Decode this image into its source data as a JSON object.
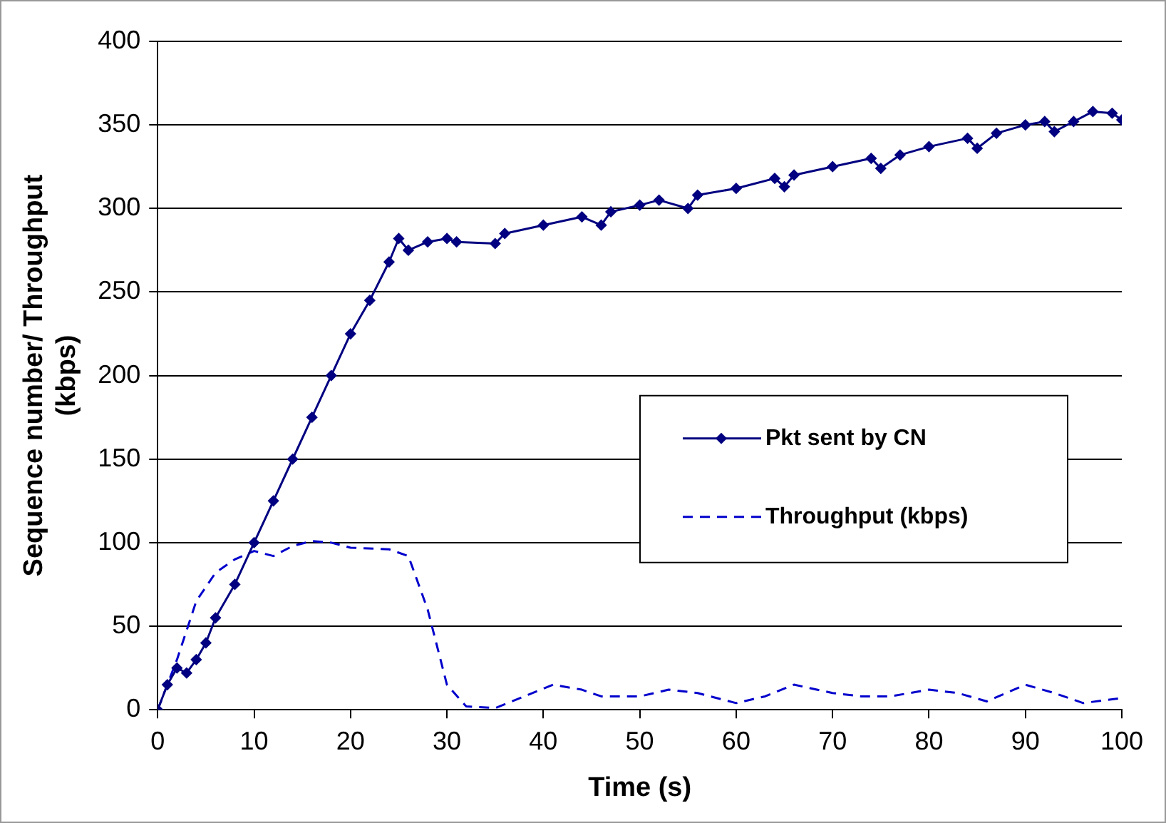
{
  "chart_data": {
    "type": "line",
    "xlabel": "Time (s)",
    "ylabel": "Sequence number/ Throughput (kbps)",
    "xlim": [
      0,
      100
    ],
    "xticks": [
      0,
      10,
      20,
      30,
      40,
      50,
      60,
      70,
      80,
      90,
      100
    ],
    "ylim": [
      0,
      400
    ],
    "yticks": [
      0,
      50,
      100,
      150,
      200,
      250,
      300,
      350,
      400
    ],
    "grid": "y",
    "legend": "right",
    "series": [
      {
        "name": "Pkt sent by CN",
        "color": "#000080",
        "marker": "diamond",
        "line_style": "solid",
        "x": [
          0,
          1,
          2,
          3,
          4,
          5,
          6,
          8,
          10,
          12,
          14,
          16,
          18,
          20,
          22,
          24,
          25,
          26,
          28,
          30,
          31,
          35,
          36,
          40,
          44,
          46,
          47,
          50,
          52,
          55,
          56,
          60,
          64,
          65,
          66,
          70,
          74,
          75,
          77,
          80,
          84,
          85,
          87,
          90,
          92,
          93,
          95,
          97,
          99,
          100
        ],
        "values": [
          0,
          15,
          25,
          22,
          30,
          40,
          55,
          75,
          100,
          125,
          150,
          175,
          200,
          225,
          245,
          268,
          282,
          275,
          280,
          282,
          280,
          279,
          285,
          290,
          295,
          290,
          298,
          302,
          305,
          300,
          308,
          312,
          318,
          313,
          320,
          325,
          330,
          324,
          332,
          337,
          342,
          336,
          345,
          350,
          352,
          346,
          352,
          358,
          357,
          353
        ]
      },
      {
        "name": "Throughput (kbps)",
        "color": "#0000cc",
        "marker": "none",
        "line_style": "dashed",
        "x": [
          0,
          2,
          4,
          6,
          8,
          10,
          12,
          14,
          16,
          18,
          20,
          24,
          26,
          28,
          30,
          32,
          35,
          38,
          41,
          44,
          46,
          50,
          53,
          56,
          60,
          63,
          66,
          70,
          73,
          76,
          80,
          83,
          86,
          90,
          93,
          96,
          100
        ],
        "values": [
          0,
          30,
          65,
          82,
          90,
          95,
          92,
          98,
          101,
          100,
          97,
          96,
          92,
          60,
          15,
          2,
          1,
          8,
          15,
          12,
          8,
          8,
          12,
          10,
          4,
          8,
          15,
          10,
          8,
          8,
          12,
          10,
          5,
          15,
          10,
          4,
          7
        ]
      }
    ]
  }
}
